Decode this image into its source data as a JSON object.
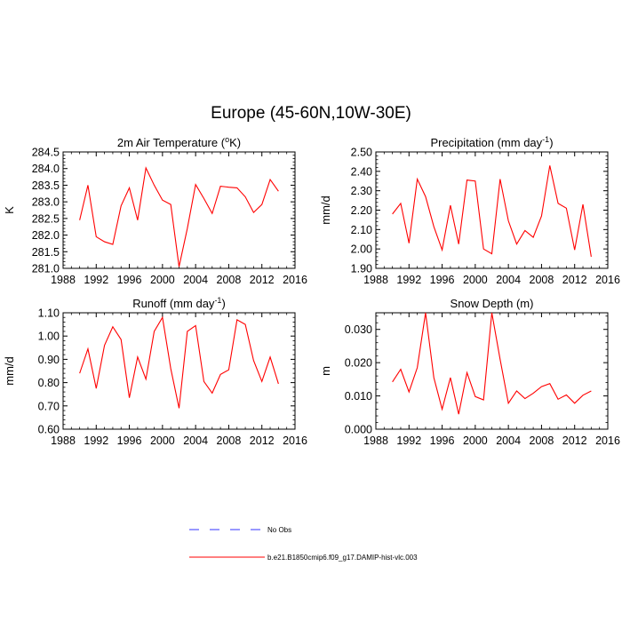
{
  "figure": {
    "title": "Europe (45-60N,10W-30E)"
  },
  "legend": [
    {
      "label": "No Obs",
      "color": "#3333ff",
      "dash": true
    },
    {
      "label": "b.e21.B1850cmip6.f09_g17.DAMIP-hist-vlc.003",
      "color": "#ff0000",
      "dash": false
    }
  ],
  "chart_data": [
    {
      "type": "line",
      "title": "2m Air Temperature (",
      "title_sup": "o",
      "title_suffix": "K)",
      "ylabel": "K",
      "xlim": [
        1988,
        2016
      ],
      "xticks": [
        "1988",
        "1992",
        "1996",
        "2000",
        "2004",
        "2008",
        "2012",
        "2016"
      ],
      "ylim": [
        281.0,
        284.5
      ],
      "yticks": [
        "281.0",
        "281.5",
        "282.0",
        "282.5",
        "283.0",
        "283.5",
        "284.0",
        "284.5"
      ],
      "series": [
        {
          "name": "b.e21.B1850cmip6.f09_g17.DAMIP-hist-vlc.003",
          "color": "#ff0000",
          "x": [
            1990,
            1991,
            1992,
            1993,
            1994,
            1995,
            1996,
            1997,
            1998,
            1999,
            2000,
            2001,
            2002,
            2003,
            2004,
            2005,
            2006,
            2007,
            2008,
            2009,
            2010,
            2011,
            2012,
            2013,
            2014
          ],
          "values": [
            282.45,
            283.5,
            281.95,
            281.8,
            281.72,
            282.88,
            283.42,
            282.45,
            284.02,
            283.5,
            283.05,
            282.92,
            281.05,
            282.2,
            283.52,
            283.1,
            282.65,
            283.47,
            283.44,
            283.42,
            283.15,
            282.68,
            282.92,
            283.67,
            283.32
          ]
        }
      ]
    },
    {
      "type": "line",
      "title": "Precipitation (mm day",
      "title_sup": "-1",
      "title_suffix": ")",
      "ylabel": "mm/d",
      "xlim": [
        1988,
        2016
      ],
      "xticks": [
        "1988",
        "1992",
        "1996",
        "2000",
        "2004",
        "2008",
        "2012",
        "2016"
      ],
      "ylim": [
        1.9,
        2.5
      ],
      "yticks": [
        "1.90",
        "2.00",
        "2.10",
        "2.20",
        "2.30",
        "2.40",
        "2.50"
      ],
      "series": [
        {
          "name": "b.e21.B1850cmip6.f09_g17.DAMIP-hist-vlc.003",
          "color": "#ff0000",
          "x": [
            1990,
            1991,
            1992,
            1993,
            1994,
            1995,
            1996,
            1997,
            1998,
            1999,
            2000,
            2001,
            2002,
            2003,
            2004,
            2005,
            2006,
            2007,
            2008,
            2009,
            2010,
            2011,
            2012,
            2013,
            2014
          ],
          "values": [
            2.18,
            2.235,
            2.03,
            2.36,
            2.27,
            2.115,
            1.995,
            2.225,
            2.025,
            2.355,
            2.35,
            2.0,
            1.975,
            2.36,
            2.145,
            2.025,
            2.095,
            2.06,
            2.17,
            2.43,
            2.235,
            2.21,
            1.995,
            2.23,
            1.96
          ]
        }
      ]
    },
    {
      "type": "line",
      "title": "Runoff (mm day",
      "title_sup": "-1",
      "title_suffix": ")",
      "ylabel": "mm/d",
      "xlim": [
        1988,
        2016
      ],
      "xticks": [
        "1988",
        "1992",
        "1996",
        "2000",
        "2004",
        "2008",
        "2012",
        "2016"
      ],
      "ylim": [
        0.6,
        1.1
      ],
      "yticks": [
        "0.60",
        "0.70",
        "0.80",
        "0.90",
        "1.00",
        "1.10"
      ],
      "series": [
        {
          "name": "b.e21.B1850cmip6.f09_g17.DAMIP-hist-vlc.003",
          "color": "#ff0000",
          "x": [
            1990,
            1991,
            1992,
            1993,
            1994,
            1995,
            1996,
            1997,
            1998,
            1999,
            2000,
            2001,
            2002,
            2003,
            2004,
            2005,
            2006,
            2007,
            2008,
            2009,
            2010,
            2011,
            2012,
            2013,
            2014
          ],
          "values": [
            0.84,
            0.945,
            0.775,
            0.96,
            1.04,
            0.985,
            0.735,
            0.91,
            0.815,
            1.02,
            1.08,
            0.86,
            0.69,
            1.02,
            1.045,
            0.805,
            0.755,
            0.835,
            0.855,
            1.07,
            1.05,
            0.895,
            0.805,
            0.91,
            0.795
          ]
        }
      ]
    },
    {
      "type": "line",
      "title": "Snow Depth (m)",
      "title_sup": "",
      "title_suffix": "",
      "ylabel": "m",
      "xlim": [
        1988,
        2016
      ],
      "xticks": [
        "1988",
        "1992",
        "1996",
        "2000",
        "2004",
        "2008",
        "2012",
        "2016"
      ],
      "ylim": [
        0.0,
        0.035
      ],
      "yticks": [
        "0.000",
        "0.010",
        "0.020",
        "0.030"
      ],
      "ytick_values": [
        0.0,
        0.01,
        0.02,
        0.03
      ],
      "series": [
        {
          "name": "b.e21.B1850cmip6.f09_g17.DAMIP-hist-vlc.003",
          "color": "#ff0000",
          "x": [
            1990,
            1991,
            1992,
            1993,
            1994,
            1995,
            1996,
            1997,
            1998,
            1999,
            2000,
            2001,
            2002,
            2003,
            2004,
            2005,
            2006,
            2007,
            2008,
            2009,
            2010,
            2011,
            2012,
            2013,
            2014
          ],
          "values": [
            0.0142,
            0.018,
            0.0112,
            0.0185,
            0.035,
            0.0155,
            0.006,
            0.0155,
            0.0045,
            0.017,
            0.0098,
            0.0088,
            0.035,
            0.021,
            0.0078,
            0.0115,
            0.0092,
            0.0108,
            0.0128,
            0.0137,
            0.009,
            0.0103,
            0.0078,
            0.0102,
            0.0115
          ]
        }
      ]
    }
  ]
}
